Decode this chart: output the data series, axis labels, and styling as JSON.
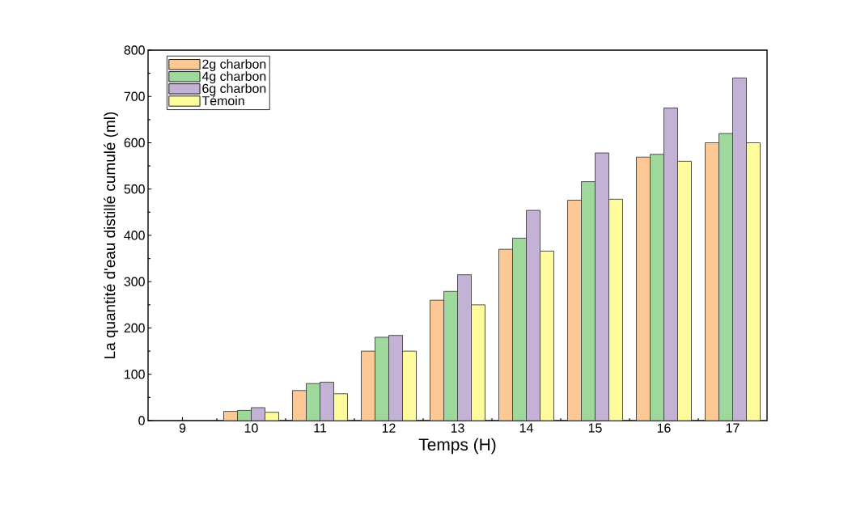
{
  "chart_data": {
    "type": "bar",
    "xlabel": "Temps (H)",
    "ylabel": "La quantité d'eau distillé cumulé (ml)",
    "categories": [
      "9",
      "10",
      "11",
      "12",
      "13",
      "14",
      "15",
      "16",
      "17"
    ],
    "series": [
      {
        "name": "2g charbon",
        "color": "#fcc896",
        "values": [
          null,
          20,
          65,
          150,
          260,
          370,
          476,
          569,
          600
        ]
      },
      {
        "name": "4g charbon",
        "color": "#9fd89c",
        "values": [
          null,
          22,
          80,
          180,
          279,
          394,
          516,
          575,
          620
        ]
      },
      {
        "name": "6g charbon",
        "color": "#c3b1d6",
        "values": [
          null,
          28,
          83,
          184,
          315,
          454,
          578,
          675,
          740
        ]
      },
      {
        "name": "Témoin",
        "color": "#fefb9c",
        "values": [
          null,
          18,
          58,
          150,
          250,
          366,
          478,
          560,
          600
        ]
      }
    ],
    "ylim": [
      0,
      800
    ],
    "yticks": [
      0,
      100,
      200,
      300,
      400,
      500,
      600,
      700,
      800
    ],
    "grid": false,
    "legend": "top left"
  }
}
